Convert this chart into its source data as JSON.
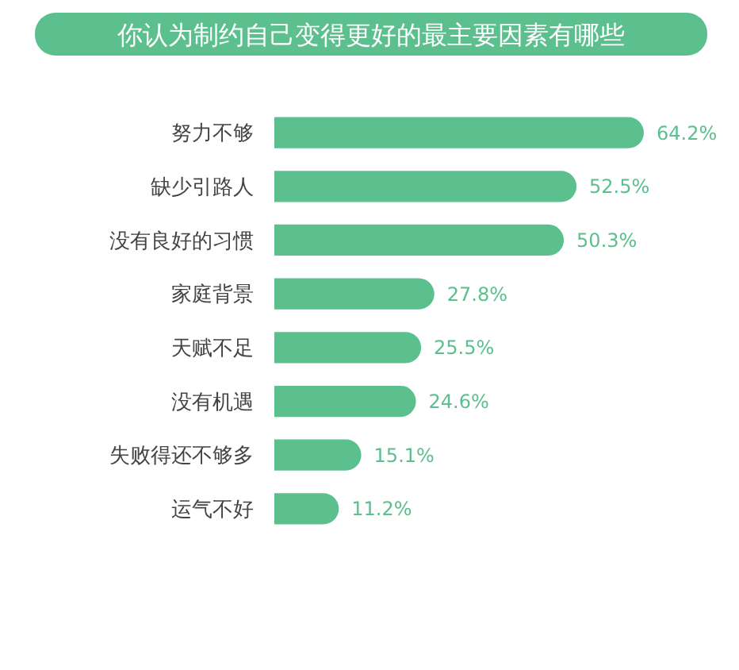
{
  "chart_data": {
    "type": "bar",
    "orientation": "horizontal",
    "title": "你认为制约自己变得更好的最主要因素有哪些",
    "categories": [
      "努力不够",
      "缺少引路人",
      "没有良好的习惯",
      "家庭背景",
      "天赋不足",
      "没有机遇",
      "失败得还不够多",
      "运气不好"
    ],
    "values": [
      64.2,
      52.5,
      50.3,
      27.8,
      25.5,
      24.6,
      15.1,
      11.2
    ],
    "value_labels": [
      "64.2%",
      "52.5%",
      "50.3%",
      "27.8%",
      "25.5%",
      "24.6%",
      "15.1%",
      "11.2%"
    ],
    "color": "#5cbf8e"
  }
}
